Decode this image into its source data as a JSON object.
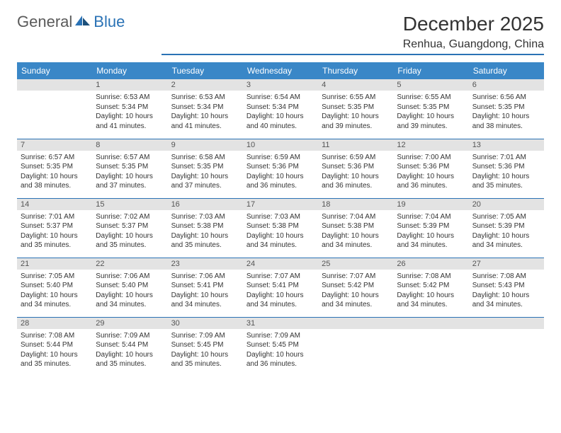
{
  "brand": {
    "word1": "General",
    "word2": "Blue"
  },
  "title": "December 2025",
  "location": "Renhua, Guangdong, China",
  "colors": {
    "header_bg": "#3a87c7",
    "header_text": "#ffffff",
    "rule": "#2a72b5",
    "daynum_bg": "#e3e3e3",
    "body_text": "#333333",
    "logo_gray": "#5a5a5a",
    "logo_blue": "#2a72b5"
  },
  "weekdays": [
    "Sunday",
    "Monday",
    "Tuesday",
    "Wednesday",
    "Thursday",
    "Friday",
    "Saturday"
  ],
  "first_weekday_index": 1,
  "days": [
    {
      "n": 1,
      "sunrise": "6:53 AM",
      "sunset": "5:34 PM",
      "daylight": "10 hours and 41 minutes."
    },
    {
      "n": 2,
      "sunrise": "6:53 AM",
      "sunset": "5:34 PM",
      "daylight": "10 hours and 41 minutes."
    },
    {
      "n": 3,
      "sunrise": "6:54 AM",
      "sunset": "5:34 PM",
      "daylight": "10 hours and 40 minutes."
    },
    {
      "n": 4,
      "sunrise": "6:55 AM",
      "sunset": "5:35 PM",
      "daylight": "10 hours and 39 minutes."
    },
    {
      "n": 5,
      "sunrise": "6:55 AM",
      "sunset": "5:35 PM",
      "daylight": "10 hours and 39 minutes."
    },
    {
      "n": 6,
      "sunrise": "6:56 AM",
      "sunset": "5:35 PM",
      "daylight": "10 hours and 38 minutes."
    },
    {
      "n": 7,
      "sunrise": "6:57 AM",
      "sunset": "5:35 PM",
      "daylight": "10 hours and 38 minutes."
    },
    {
      "n": 8,
      "sunrise": "6:57 AM",
      "sunset": "5:35 PM",
      "daylight": "10 hours and 37 minutes."
    },
    {
      "n": 9,
      "sunrise": "6:58 AM",
      "sunset": "5:35 PM",
      "daylight": "10 hours and 37 minutes."
    },
    {
      "n": 10,
      "sunrise": "6:59 AM",
      "sunset": "5:36 PM",
      "daylight": "10 hours and 36 minutes."
    },
    {
      "n": 11,
      "sunrise": "6:59 AM",
      "sunset": "5:36 PM",
      "daylight": "10 hours and 36 minutes."
    },
    {
      "n": 12,
      "sunrise": "7:00 AM",
      "sunset": "5:36 PM",
      "daylight": "10 hours and 36 minutes."
    },
    {
      "n": 13,
      "sunrise": "7:01 AM",
      "sunset": "5:36 PM",
      "daylight": "10 hours and 35 minutes."
    },
    {
      "n": 14,
      "sunrise": "7:01 AM",
      "sunset": "5:37 PM",
      "daylight": "10 hours and 35 minutes."
    },
    {
      "n": 15,
      "sunrise": "7:02 AM",
      "sunset": "5:37 PM",
      "daylight": "10 hours and 35 minutes."
    },
    {
      "n": 16,
      "sunrise": "7:03 AM",
      "sunset": "5:38 PM",
      "daylight": "10 hours and 35 minutes."
    },
    {
      "n": 17,
      "sunrise": "7:03 AM",
      "sunset": "5:38 PM",
      "daylight": "10 hours and 34 minutes."
    },
    {
      "n": 18,
      "sunrise": "7:04 AM",
      "sunset": "5:38 PM",
      "daylight": "10 hours and 34 minutes."
    },
    {
      "n": 19,
      "sunrise": "7:04 AM",
      "sunset": "5:39 PM",
      "daylight": "10 hours and 34 minutes."
    },
    {
      "n": 20,
      "sunrise": "7:05 AM",
      "sunset": "5:39 PM",
      "daylight": "10 hours and 34 minutes."
    },
    {
      "n": 21,
      "sunrise": "7:05 AM",
      "sunset": "5:40 PM",
      "daylight": "10 hours and 34 minutes."
    },
    {
      "n": 22,
      "sunrise": "7:06 AM",
      "sunset": "5:40 PM",
      "daylight": "10 hours and 34 minutes."
    },
    {
      "n": 23,
      "sunrise": "7:06 AM",
      "sunset": "5:41 PM",
      "daylight": "10 hours and 34 minutes."
    },
    {
      "n": 24,
      "sunrise": "7:07 AM",
      "sunset": "5:41 PM",
      "daylight": "10 hours and 34 minutes."
    },
    {
      "n": 25,
      "sunrise": "7:07 AM",
      "sunset": "5:42 PM",
      "daylight": "10 hours and 34 minutes."
    },
    {
      "n": 26,
      "sunrise": "7:08 AM",
      "sunset": "5:42 PM",
      "daylight": "10 hours and 34 minutes."
    },
    {
      "n": 27,
      "sunrise": "7:08 AM",
      "sunset": "5:43 PM",
      "daylight": "10 hours and 34 minutes."
    },
    {
      "n": 28,
      "sunrise": "7:08 AM",
      "sunset": "5:44 PM",
      "daylight": "10 hours and 35 minutes."
    },
    {
      "n": 29,
      "sunrise": "7:09 AM",
      "sunset": "5:44 PM",
      "daylight": "10 hours and 35 minutes."
    },
    {
      "n": 30,
      "sunrise": "7:09 AM",
      "sunset": "5:45 PM",
      "daylight": "10 hours and 35 minutes."
    },
    {
      "n": 31,
      "sunrise": "7:09 AM",
      "sunset": "5:45 PM",
      "daylight": "10 hours and 36 minutes."
    }
  ],
  "labels": {
    "sunrise": "Sunrise:",
    "sunset": "Sunset:",
    "daylight": "Daylight:"
  }
}
